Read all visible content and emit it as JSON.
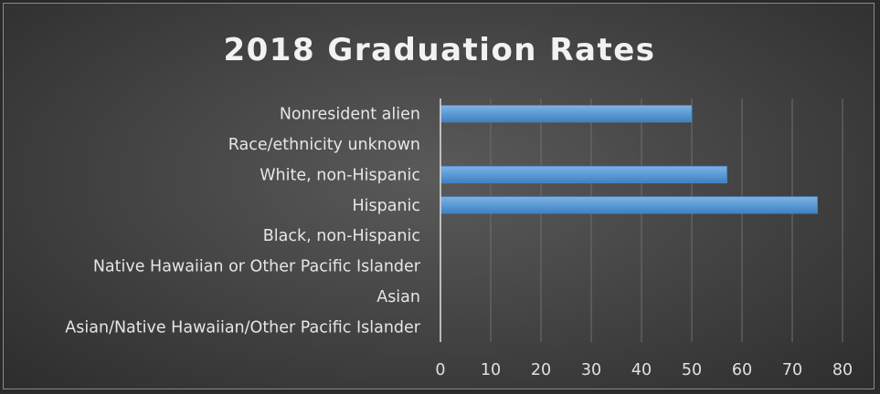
{
  "chart_data": {
    "type": "bar",
    "orientation": "horizontal",
    "title": "2018 Graduation Rates",
    "categories": [
      "Nonresident alien",
      "Race/ethnicity unknown",
      "White, non-Hispanic",
      "Hispanic",
      "Black, non-Hispanic",
      "Native Hawaiian or Other Pacific Islander",
      "Asian",
      "Asian/Native Hawaiian/Other Pacific Islander"
    ],
    "values": [
      50,
      0,
      57,
      75,
      0,
      0,
      0,
      0
    ],
    "xlim": [
      0,
      80
    ],
    "xticks": [
      0,
      10,
      20,
      30,
      40,
      50,
      60,
      70,
      80
    ],
    "grid": true,
    "legend": "none",
    "bar_color": "#5b9bd5",
    "xlabel": "",
    "ylabel": ""
  }
}
